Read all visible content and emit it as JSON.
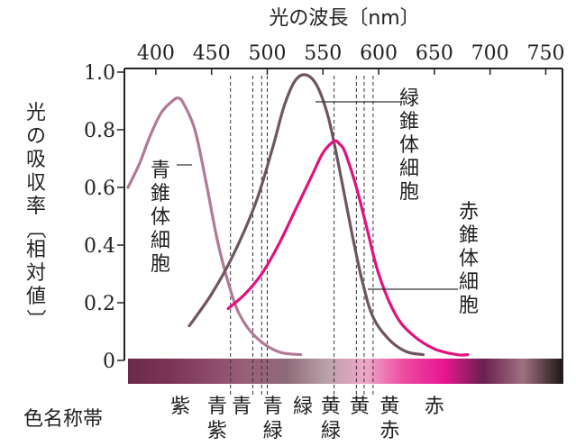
{
  "chart_data": {
    "type": "line",
    "title": "光の波長〔nm〕",
    "ylabel": "光の吸収率〔相対値〕",
    "band_label": "色名称帯",
    "x_ticks": [
      400,
      450,
      500,
      550,
      600,
      650,
      700,
      750
    ],
    "y_ticks": [
      "0",
      "0.2",
      "0.4",
      "0.6",
      "0.8",
      "1.0"
    ],
    "xlim": [
      375,
      765
    ],
    "ylim": [
      0,
      1.0
    ],
    "series": [
      {
        "name": "青錐体細胞",
        "color": "#b07a96",
        "x": [
          375,
          385,
          395,
          405,
          415,
          420,
          425,
          435,
          445,
          455,
          465,
          475,
          490,
          510,
          530
        ],
        "y": [
          0.6,
          0.68,
          0.78,
          0.86,
          0.9,
          0.91,
          0.89,
          0.8,
          0.62,
          0.42,
          0.27,
          0.16,
          0.08,
          0.03,
          0.02
        ]
      },
      {
        "name": "緑錐体細胞",
        "color": "#6e5560",
        "x": [
          430,
          450,
          470,
          490,
          505,
          515,
          525,
          535,
          545,
          555,
          565,
          575,
          585,
          595,
          610,
          625,
          640
        ],
        "y": [
          0.12,
          0.23,
          0.37,
          0.55,
          0.74,
          0.88,
          0.97,
          0.99,
          0.95,
          0.84,
          0.66,
          0.46,
          0.28,
          0.15,
          0.07,
          0.03,
          0.02
        ]
      },
      {
        "name": "赤錐体細胞",
        "color": "#e0127e",
        "x": [
          465,
          480,
          495,
          510,
          525,
          540,
          550,
          560,
          565,
          570,
          580,
          590,
          600,
          615,
          630,
          650,
          670,
          680
        ],
        "y": [
          0.18,
          0.23,
          0.3,
          0.4,
          0.52,
          0.64,
          0.72,
          0.76,
          0.75,
          0.72,
          0.6,
          0.45,
          0.3,
          0.16,
          0.09,
          0.04,
          0.02,
          0.02
        ]
      }
    ],
    "series_labels": [
      {
        "text": "青錐体細胞",
        "chars": [
          "青",
          "錐",
          "体",
          "細",
          "胞"
        ]
      },
      {
        "text": "緑錐体細胞",
        "chars": [
          "緑",
          "錐",
          "体",
          "細",
          "胞"
        ]
      },
      {
        "text": "赤錐体細胞",
        "chars": [
          "赤",
          "錐",
          "体",
          "細",
          "胞"
        ]
      }
    ],
    "boundaries": [
      467,
      487,
      495,
      500,
      560,
      580,
      587,
      595
    ],
    "color_bands": [
      {
        "top": "紫",
        "bottom": "",
        "x": 422
      },
      {
        "top": "青",
        "bottom": "紫",
        "x": 455
      },
      {
        "top": "青",
        "bottom": "",
        "x": 477
      },
      {
        "top": "青",
        "bottom": "緑",
        "x": 505
      },
      {
        "top": "緑",
        "bottom": "",
        "x": 532
      },
      {
        "top": "黄",
        "bottom": "緑",
        "x": 557
      },
      {
        "top": "黄",
        "bottom": "",
        "x": 583
      },
      {
        "top": "黄",
        "bottom": "赤",
        "x": 610
      },
      {
        "top": "赤",
        "bottom": "",
        "x": 650
      }
    ],
    "spectrum_colors": [
      "#6a2a4c",
      "#7a3355",
      "#8a4868",
      "#9a6078",
      "#8e6a78",
      "#b8a0a8",
      "#f0a8c8",
      "#ec4aa0",
      "#e81690",
      "#6a2050",
      "#a07080",
      "#201818"
    ]
  }
}
